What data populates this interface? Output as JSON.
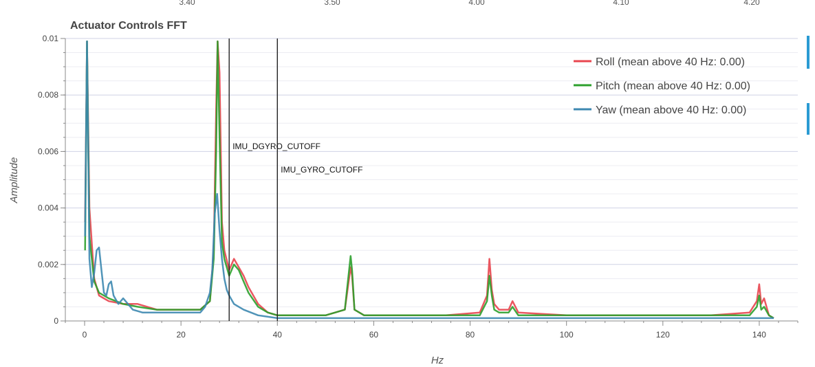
{
  "top_strip": {
    "labels": [
      "3.40",
      "3.50",
      "4.00",
      "4.10",
      "4.20"
    ]
  },
  "chart_data": {
    "type": "line",
    "title": "Actuator Controls FFT",
    "xlabel": "Hz",
    "ylabel": "Amplitude",
    "xlim": [
      -4,
      148
    ],
    "ylim": [
      0,
      0.01
    ],
    "x_ticks": [
      0,
      20,
      40,
      60,
      80,
      100,
      120,
      140
    ],
    "x_tick_labels": [
      "0",
      "20",
      "40",
      "60",
      "80",
      "100",
      "120",
      "140"
    ],
    "y_ticks": [
      0,
      0.002,
      0.004,
      0.006,
      0.008,
      0.01
    ],
    "y_tick_labels": [
      "0",
      "0.002",
      "0.004",
      "0.006",
      "0.008",
      "0.01"
    ],
    "grid": true,
    "legend_position": "top-right",
    "series": [
      {
        "name": "Roll (mean above 40 Hz: 0.00)",
        "color": "#e8454f",
        "x": [
          0.1,
          0.5,
          1,
          2,
          3,
          5,
          8,
          11,
          15,
          20,
          24,
          26,
          26.8,
          27.3,
          27.6,
          28,
          28.5,
          29,
          30,
          31,
          32,
          33,
          34,
          36,
          38,
          40,
          45,
          50,
          54,
          55.2,
          55.5,
          56,
          58,
          65,
          75,
          82,
          83.5,
          84,
          84.5,
          85,
          86,
          88,
          88.8,
          90,
          100,
          110,
          120,
          130,
          138,
          139.5,
          140,
          140.4,
          141,
          142,
          143
        ],
        "y": [
          0.0035,
          0.0099,
          0.004,
          0.0015,
          0.0009,
          0.0007,
          0.0006,
          0.0006,
          0.0004,
          0.0004,
          0.0004,
          0.0007,
          0.0025,
          0.0075,
          0.0099,
          0.0088,
          0.0035,
          0.0025,
          0.0018,
          0.0022,
          0.0019,
          0.0016,
          0.0012,
          0.0006,
          0.0003,
          0.0002,
          0.0002,
          0.0002,
          0.0004,
          0.0019,
          0.0016,
          0.0004,
          0.0002,
          0.0002,
          0.0002,
          0.0003,
          0.0009,
          0.0022,
          0.0011,
          0.0006,
          0.0004,
          0.0004,
          0.0007,
          0.0003,
          0.0002,
          0.0002,
          0.0002,
          0.0002,
          0.0003,
          0.0007,
          0.0013,
          0.0006,
          0.0008,
          0.0002,
          0.0001
        ]
      },
      {
        "name": "Pitch (mean above 40 Hz: 0.00)",
        "color": "#2ca02c",
        "x": [
          0.1,
          0.5,
          1,
          2,
          3,
          5,
          8,
          11,
          15,
          20,
          24,
          26,
          26.8,
          27.3,
          27.6,
          28,
          28.5,
          29,
          30,
          31,
          32,
          33,
          34,
          36,
          38,
          40,
          45,
          50,
          54,
          55.2,
          55.5,
          56,
          58,
          65,
          75,
          82,
          83.5,
          84,
          84.5,
          85,
          86,
          88,
          88.8,
          90,
          100,
          110,
          120,
          130,
          138,
          139.5,
          140,
          140.4,
          141,
          142,
          143
        ],
        "y": [
          0.0025,
          0.0099,
          0.003,
          0.0014,
          0.001,
          0.0008,
          0.0006,
          0.0005,
          0.0004,
          0.0004,
          0.0004,
          0.0007,
          0.0022,
          0.006,
          0.0099,
          0.0065,
          0.0028,
          0.0022,
          0.0016,
          0.002,
          0.0018,
          0.0014,
          0.001,
          0.0005,
          0.0003,
          0.0002,
          0.0002,
          0.0002,
          0.0004,
          0.0023,
          0.0018,
          0.0004,
          0.0002,
          0.0002,
          0.0002,
          0.0002,
          0.0007,
          0.0016,
          0.0009,
          0.0004,
          0.0003,
          0.0003,
          0.0005,
          0.0002,
          0.0002,
          0.0002,
          0.0002,
          0.0002,
          0.0002,
          0.0005,
          0.0009,
          0.0004,
          0.0005,
          0.0002,
          0.0001
        ]
      },
      {
        "name": "Yaw (mean above 40 Hz: 0.00)",
        "color": "#3d88b0",
        "x": [
          0.1,
          0.5,
          1,
          1.5,
          2,
          2.5,
          3,
          3.5,
          4,
          4.5,
          5,
          5.5,
          6,
          7,
          8,
          9,
          10,
          12,
          14,
          16,
          18,
          20,
          22,
          24,
          25,
          26,
          26.5,
          27,
          27.5,
          28,
          28.5,
          29,
          29.5,
          30,
          31,
          33,
          36,
          40,
          50,
          60,
          70,
          80,
          90,
          100,
          110,
          120,
          130,
          140,
          143
        ],
        "y": [
          0.003,
          0.0099,
          0.0022,
          0.0012,
          0.0017,
          0.0025,
          0.0026,
          0.0018,
          0.001,
          0.0009,
          0.0013,
          0.0014,
          0.0009,
          0.0006,
          0.0008,
          0.0006,
          0.0004,
          0.0003,
          0.0003,
          0.0003,
          0.0003,
          0.0003,
          0.0003,
          0.0003,
          0.0005,
          0.001,
          0.0018,
          0.0038,
          0.0045,
          0.0032,
          0.0022,
          0.0015,
          0.0011,
          0.0009,
          0.0006,
          0.0004,
          0.0002,
          0.0001,
          0.0001,
          0.0001,
          0.0001,
          0.0001,
          0.0001,
          0.0001,
          0.0001,
          0.0001,
          0.0001,
          0.0001,
          0.0001
        ]
      }
    ],
    "markers": [
      {
        "label": "IMU_DGYRO_CUTOFF",
        "x": 30
      },
      {
        "label": "IMU_GYRO_CUTOFF",
        "x": 40
      }
    ]
  }
}
